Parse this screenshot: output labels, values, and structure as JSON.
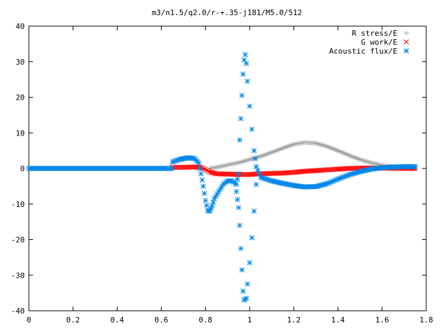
{
  "chart_data": {
    "type": "scatter",
    "title": "m3/n1.5/q2.0/r-+.35-j181/M5.0/512",
    "xlabel": "",
    "ylabel": "",
    "xlim": [
      0,
      1.8
    ],
    "ylim": [
      -40,
      40
    ],
    "xticks": [
      0,
      0.2,
      0.4,
      0.6,
      0.8,
      1,
      1.2,
      1.4,
      1.6,
      1.8
    ],
    "xtick_labels": [
      "0",
      "0.2",
      "0.4",
      "0.6",
      "0.8",
      "1",
      "1.2",
      "1.4",
      "1.6",
      "1.8"
    ],
    "yticks": [
      -40,
      -30,
      -20,
      -10,
      0,
      10,
      20,
      30,
      40
    ],
    "ytick_labels": [
      "-40",
      "-30",
      "-20",
      "-10",
      "0",
      "10",
      "20",
      "30",
      "40"
    ],
    "grid": false,
    "legend_position": "top-right",
    "series": [
      {
        "name": "R stress/E",
        "marker": "plus",
        "color": "#a0a0a0",
        "points": [
          [
            0.82,
            0
          ],
          [
            0.85,
            0.3
          ],
          [
            0.88,
            0.7
          ],
          [
            0.9,
            1.0
          ],
          [
            0.95,
            1.6
          ],
          [
            1.0,
            2.5
          ],
          [
            1.05,
            3.4
          ],
          [
            1.1,
            4.5
          ],
          [
            1.15,
            5.7
          ],
          [
            1.2,
            6.8
          ],
          [
            1.25,
            7.3
          ],
          [
            1.3,
            7.1
          ],
          [
            1.35,
            6.2
          ],
          [
            1.4,
            5.0
          ],
          [
            1.45,
            3.7
          ],
          [
            1.5,
            2.5
          ],
          [
            1.55,
            1.6
          ],
          [
            1.6,
            0.9
          ],
          [
            1.65,
            0.4
          ],
          [
            1.7,
            0.1
          ],
          [
            1.75,
            0
          ]
        ]
      },
      {
        "name": "G work/E",
        "marker": "cross",
        "color": "#ff0000",
        "points": [
          [
            0.65,
            0.3
          ],
          [
            0.7,
            0.3
          ],
          [
            0.75,
            0.4
          ],
          [
            0.78,
            0.3
          ],
          [
            0.8,
            -0.3
          ],
          [
            0.82,
            -1.0
          ],
          [
            0.85,
            -1.5
          ],
          [
            0.9,
            -1.6
          ],
          [
            0.95,
            -1.7
          ],
          [
            1.0,
            -1.7
          ],
          [
            1.05,
            -1.5
          ],
          [
            1.1,
            -1.4
          ],
          [
            1.15,
            -1.3
          ],
          [
            1.2,
            -1.1
          ],
          [
            1.25,
            -0.8
          ],
          [
            1.3,
            -0.6
          ],
          [
            1.35,
            -0.4
          ],
          [
            1.4,
            -0.2
          ],
          [
            1.45,
            0
          ],
          [
            1.5,
            0.1
          ],
          [
            1.55,
            0.1
          ],
          [
            1.6,
            0.1
          ],
          [
            1.65,
            0.05
          ],
          [
            1.7,
            0.02
          ],
          [
            1.75,
            0
          ]
        ]
      },
      {
        "name": "Acoustic flux/E",
        "marker": "star",
        "color": "#0088e8",
        "points": [
          [
            0.65,
            1.8
          ],
          [
            0.68,
            2.5
          ],
          [
            0.72,
            3.0
          ],
          [
            0.75,
            2.8
          ],
          [
            0.77,
            1.5
          ],
          [
            0.78,
            -1.5
          ],
          [
            0.79,
            -5
          ],
          [
            0.8,
            -9
          ],
          [
            0.81,
            -11.8
          ],
          [
            0.82,
            -12.0
          ],
          [
            0.83,
            -10.5
          ],
          [
            0.84,
            -8.5
          ],
          [
            0.86,
            -6.5
          ],
          [
            0.88,
            -4.5
          ],
          [
            0.9,
            -3.5
          ],
          [
            0.92,
            -3.5
          ],
          [
            0.94,
            -4.5
          ],
          [
            0.95,
            -1.5
          ],
          [
            0.955,
            8
          ],
          [
            0.96,
            14
          ],
          [
            0.965,
            20.5
          ],
          [
            0.97,
            26.5
          ],
          [
            0.975,
            30.5
          ],
          [
            0.98,
            32
          ],
          [
            0.985,
            29.5
          ],
          [
            0.99,
            24.5
          ],
          [
            1.0,
            17.5
          ],
          [
            1.01,
            11
          ],
          [
            1.02,
            5
          ],
          [
            1.03,
            0.5
          ],
          [
            1.05,
            -2.5
          ],
          [
            1.1,
            -3.5
          ],
          [
            1.15,
            -4.2
          ],
          [
            1.2,
            -4.8
          ],
          [
            1.25,
            -5.2
          ],
          [
            1.3,
            -5.1
          ],
          [
            1.35,
            -4.3
          ],
          [
            1.4,
            -3.0
          ],
          [
            1.45,
            -1.8
          ],
          [
            1.5,
            -0.9
          ],
          [
            1.55,
            -0.2
          ],
          [
            1.6,
            0.2
          ],
          [
            1.65,
            0.4
          ],
          [
            1.7,
            0.5
          ],
          [
            1.75,
            0.5
          ],
          [
            0.94,
            -6.5
          ],
          [
            0.95,
            -11
          ],
          [
            0.955,
            -16
          ],
          [
            0.96,
            -22.5
          ],
          [
            0.965,
            -28.5
          ],
          [
            0.97,
            -34.5
          ],
          [
            0.975,
            -37.0
          ],
          [
            0.985,
            -36.5
          ],
          [
            0.99,
            -32.5
          ],
          [
            1.0,
            -26.5
          ],
          [
            1.01,
            -19.5
          ],
          [
            1.02,
            -12
          ],
          [
            1.03,
            -4.5
          ]
        ]
      }
    ]
  }
}
